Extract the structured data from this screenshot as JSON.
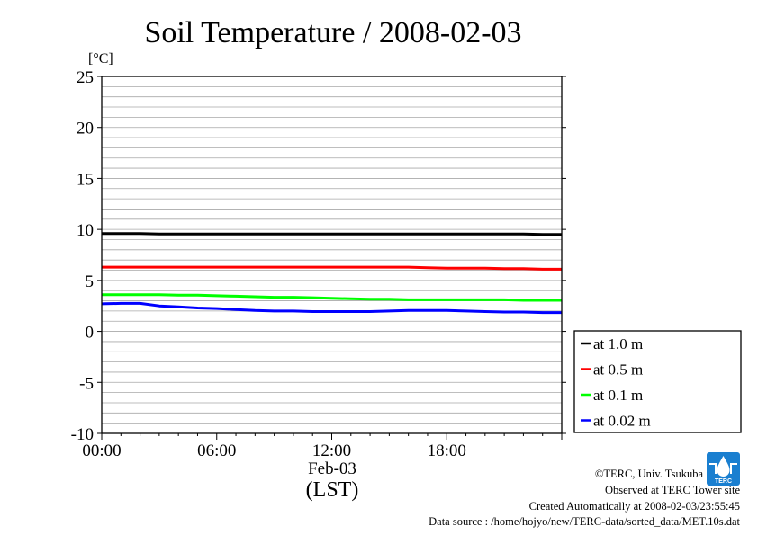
{
  "chart_data": {
    "type": "line",
    "title": "Soil Temperature / 2008-02-03",
    "ylabel": "[°C]",
    "xlabel": "(LST)",
    "x_date_label": "Feb-03",
    "ylim": [
      -10,
      25
    ],
    "xlim": [
      0,
      24
    ],
    "yticks": [
      "25",
      "20",
      "15",
      "10",
      "5",
      "0",
      "-5",
      "-10"
    ],
    "xticks": [
      "00:00",
      "06:00",
      "12:00",
      "18:00"
    ],
    "grid": true,
    "legend_position": "right",
    "x": [
      0,
      1,
      2,
      3,
      4,
      5,
      6,
      7,
      8,
      9,
      10,
      11,
      12,
      13,
      14,
      15,
      16,
      17,
      18,
      19,
      20,
      21,
      22,
      23,
      24
    ],
    "series": [
      {
        "name": "at 1.0 m",
        "color": "#000000",
        "values": [
          9.6,
          9.6,
          9.6,
          9.55,
          9.55,
          9.55,
          9.55,
          9.55,
          9.55,
          9.55,
          9.55,
          9.55,
          9.55,
          9.55,
          9.55,
          9.55,
          9.55,
          9.55,
          9.55,
          9.55,
          9.55,
          9.55,
          9.55,
          9.5,
          9.5
        ]
      },
      {
        "name": "at 0.5 m",
        "color": "#ff0000",
        "values": [
          6.3,
          6.3,
          6.3,
          6.3,
          6.3,
          6.3,
          6.3,
          6.3,
          6.3,
          6.3,
          6.3,
          6.3,
          6.3,
          6.3,
          6.3,
          6.3,
          6.3,
          6.25,
          6.2,
          6.2,
          6.2,
          6.15,
          6.15,
          6.1,
          6.1
        ]
      },
      {
        "name": "at 0.1 m",
        "color": "#00ff00",
        "values": [
          3.6,
          3.6,
          3.6,
          3.6,
          3.55,
          3.55,
          3.5,
          3.45,
          3.4,
          3.35,
          3.35,
          3.3,
          3.25,
          3.2,
          3.15,
          3.15,
          3.1,
          3.1,
          3.1,
          3.1,
          3.1,
          3.1,
          3.05,
          3.05,
          3.05
        ]
      },
      {
        "name": "at 0.02 m",
        "color": "#0000ff",
        "values": [
          2.7,
          2.75,
          2.75,
          2.5,
          2.4,
          2.3,
          2.25,
          2.15,
          2.05,
          2.0,
          2.0,
          1.95,
          1.95,
          1.95,
          1.95,
          2.0,
          2.05,
          2.05,
          2.05,
          2.0,
          1.95,
          1.9,
          1.9,
          1.85,
          1.85
        ]
      }
    ]
  },
  "footer": {
    "copyright": "©TERC, Univ. Tsukuba",
    "observed": "Observed at TERC Tower site",
    "created": "Created Automatically at 2008-02-03/23:55:45",
    "source": "Data source : /home/hojyo/new/TERC-data/sorted_data/MET.10s.dat"
  },
  "logo": {
    "text": "TERC",
    "color": "#1a7fd0"
  }
}
